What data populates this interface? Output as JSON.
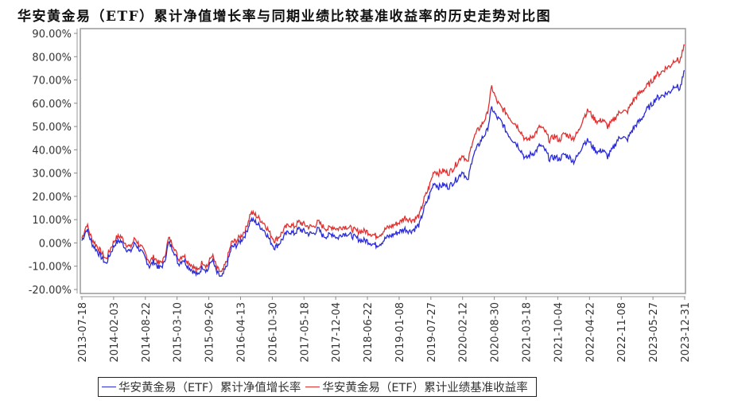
{
  "title": "华安黄金易（ETF）累计净值增长率与同期业绩比较基准收益率的历史走势对比图",
  "legend": [
    {
      "label": "华安黄金易（ETF）累计净值增长率",
      "color": "#2b2bd8"
    },
    {
      "label": "华安黄金易（ETF）累计业绩基准收益率",
      "color": "#e03030"
    }
  ],
  "chart_data": {
    "type": "line",
    "title": "华安黄金易（ETF）累计净值增长率与同期业绩比较基准收益率的历史走势对比图",
    "xlabel": "",
    "ylabel": "",
    "ylim": [
      -20,
      90
    ],
    "y_ticks": [
      "-20.00%",
      "-10.00%",
      "0.00%",
      "10.00%",
      "20.00%",
      "30.00%",
      "40.00%",
      "50.00%",
      "60.00%",
      "70.00%",
      "80.00%",
      "90.00%"
    ],
    "y_tick_values": [
      -20,
      -10,
      0,
      10,
      20,
      30,
      40,
      50,
      60,
      70,
      80,
      90
    ],
    "x_ticks": [
      "2013-07-18",
      "2014-02-03",
      "2014-08-22",
      "2015-03-10",
      "2015-09-26",
      "2016-04-13",
      "2016-10-30",
      "2017-05-18",
      "2017-12-04",
      "2018-06-22",
      "2019-01-08",
      "2019-07-27",
      "2020-02-12",
      "2020-08-30",
      "2021-03-18",
      "2021-10-04",
      "2022-04-22",
      "2022-11-08",
      "2023-05-27",
      "2023-12-31"
    ],
    "grid": true,
    "legend_position": "bottom",
    "x": [
      "2013-07",
      "2013-08",
      "2013-09",
      "2013-10",
      "2013-11",
      "2013-12",
      "2014-01",
      "2014-02",
      "2014-03",
      "2014-04",
      "2014-05",
      "2014-06",
      "2014-07",
      "2014-08",
      "2014-09",
      "2014-10",
      "2014-11",
      "2014-12",
      "2015-01",
      "2015-02",
      "2015-03",
      "2015-04",
      "2015-05",
      "2015-06",
      "2015-07",
      "2015-08",
      "2015-09",
      "2015-10",
      "2015-11",
      "2015-12",
      "2016-01",
      "2016-02",
      "2016-03",
      "2016-04",
      "2016-05",
      "2016-06",
      "2016-07",
      "2016-08",
      "2016-09",
      "2016-10",
      "2016-11",
      "2016-12",
      "2017-01",
      "2017-02",
      "2017-03",
      "2017-04",
      "2017-05",
      "2017-06",
      "2017-07",
      "2017-08",
      "2017-09",
      "2017-10",
      "2017-11",
      "2017-12",
      "2018-01",
      "2018-02",
      "2018-03",
      "2018-04",
      "2018-05",
      "2018-06",
      "2018-07",
      "2018-08",
      "2018-09",
      "2018-10",
      "2018-11",
      "2018-12",
      "2019-01",
      "2019-02",
      "2019-03",
      "2019-04",
      "2019-05",
      "2019-06",
      "2019-07",
      "2019-08",
      "2019-09",
      "2019-10",
      "2019-11",
      "2019-12",
      "2020-01",
      "2020-02",
      "2020-03",
      "2020-04",
      "2020-05",
      "2020-06",
      "2020-07",
      "2020-08",
      "2020-09",
      "2020-10",
      "2020-11",
      "2020-12",
      "2021-01",
      "2021-02",
      "2021-03",
      "2021-04",
      "2021-05",
      "2021-06",
      "2021-07",
      "2021-08",
      "2021-09",
      "2021-10",
      "2021-11",
      "2021-12",
      "2022-01",
      "2022-02",
      "2022-03",
      "2022-04",
      "2022-05",
      "2022-06",
      "2022-07",
      "2022-08",
      "2022-09",
      "2022-10",
      "2022-11",
      "2022-12",
      "2023-01",
      "2023-02",
      "2023-03",
      "2023-04",
      "2023-05",
      "2023-06",
      "2023-07",
      "2023-08",
      "2023-09",
      "2023-10",
      "2023-11",
      "2023-12"
    ],
    "series": [
      {
        "name": "华安黄金易（ETF）累计净值增长率",
        "color": "#2b2bd8",
        "values": [
          1,
          6,
          0,
          -3,
          -6,
          -9,
          -4,
          0,
          1,
          -2,
          -4,
          0,
          -3,
          -6,
          -10,
          -8,
          -11,
          -9,
          0,
          -3,
          -9,
          -7,
          -10,
          -12,
          -14,
          -10,
          -12,
          -7,
          -13,
          -15,
          -10,
          -2,
          -1,
          1,
          4,
          10,
          9,
          7,
          5,
          1,
          -2,
          0,
          3,
          5,
          4,
          6,
          5,
          4,
          4,
          6,
          3,
          3,
          4,
          2,
          4,
          4,
          3,
          2,
          1,
          1,
          0,
          -1,
          0,
          2,
          3,
          4,
          5,
          6,
          5,
          6,
          8,
          15,
          20,
          26,
          24,
          25,
          24,
          26,
          28,
          31,
          26,
          37,
          41,
          45,
          48,
          58,
          54,
          52,
          48,
          45,
          43,
          40,
          36,
          38,
          39,
          42,
          40,
          36,
          37,
          36,
          38,
          37,
          35,
          38,
          43,
          44,
          41,
          39,
          40,
          37,
          40,
          44,
          46,
          44,
          48,
          51,
          53,
          57,
          59,
          62,
          63,
          64,
          65,
          68,
          66,
          74
        ]
      },
      {
        "name": "华安黄金易（ETF）累计业绩基准收益率",
        "color": "#e03030",
        "values": [
          2,
          8,
          2,
          -1,
          -4,
          -7,
          -2,
          2,
          3,
          0,
          -2,
          2,
          -1,
          -4,
          -8,
          -6,
          -9,
          -7,
          2,
          -1,
          -7,
          -5,
          -8,
          -10,
          -12,
          -8,
          -10,
          -5,
          -11,
          -13,
          -8,
          0,
          1,
          3,
          6,
          13,
          12,
          10,
          8,
          4,
          1,
          3,
          6,
          8,
          7,
          9,
          8,
          7,
          7,
          9,
          7,
          6,
          7,
          6,
          7,
          7,
          6,
          5,
          5,
          5,
          4,
          3,
          4,
          6,
          7,
          8,
          9,
          11,
          10,
          10,
          12,
          19,
          24,
          31,
          30,
          31,
          30,
          32,
          35,
          38,
          34,
          44,
          48,
          51,
          55,
          67,
          61,
          58,
          56,
          53,
          51,
          48,
          44,
          45,
          47,
          50,
          48,
          44,
          46,
          44,
          47,
          46,
          45,
          48,
          54,
          57,
          54,
          52,
          53,
          50,
          52,
          55,
          57,
          56,
          60,
          63,
          65,
          67,
          69,
          72,
          73,
          75,
          76,
          79,
          78,
          85
        ]
      }
    ]
  }
}
